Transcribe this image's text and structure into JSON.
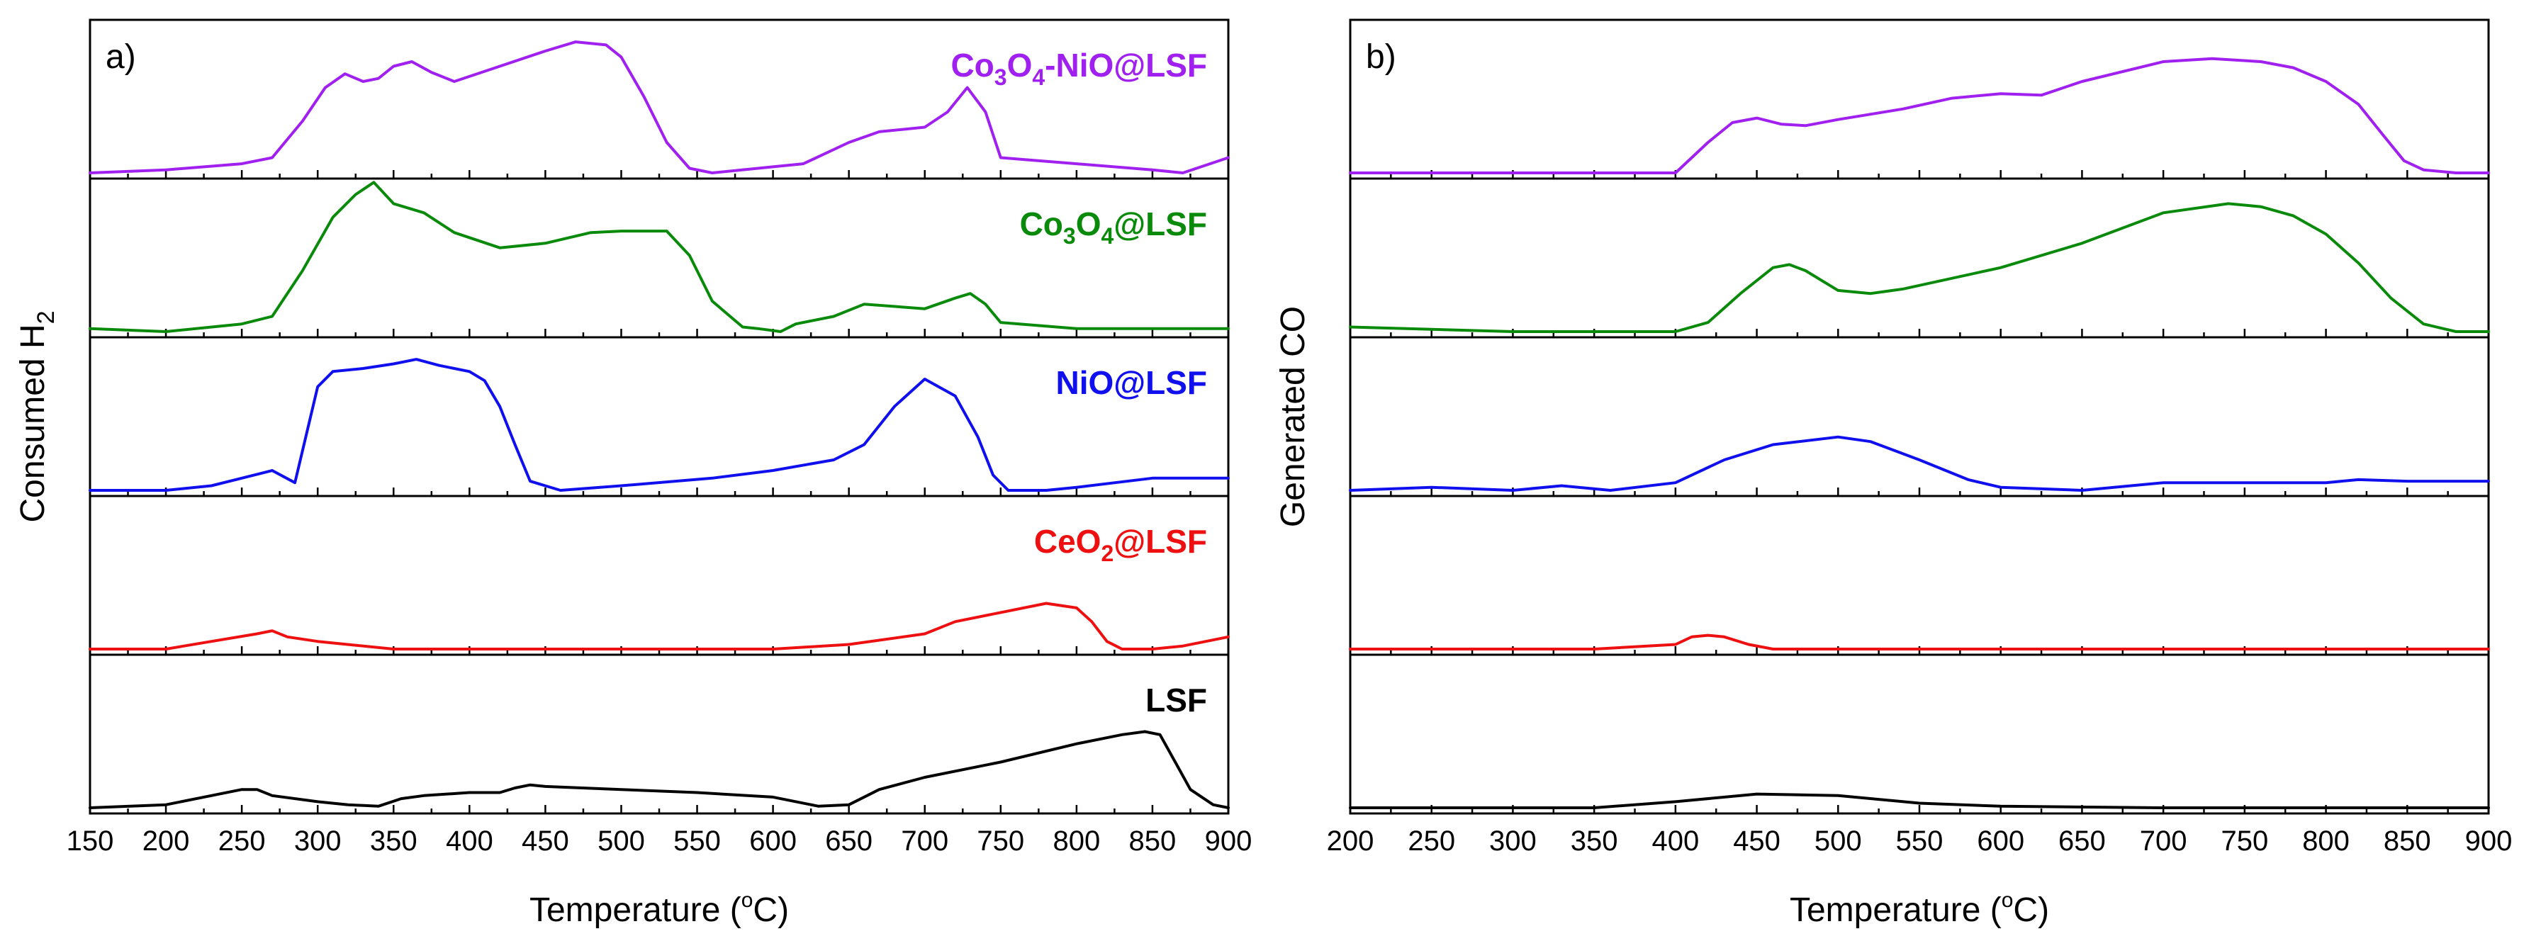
{
  "chart_data": [
    {
      "type": "line",
      "panel_label": "a)",
      "xlabel": "Temperature (",
      "xlabel_sup": "o",
      "xlabel_end": "C)",
      "ylabel": "Consumed H",
      "ylabel_sub": "2",
      "xlim": [
        150,
        900
      ],
      "xticks": [
        "150",
        "200",
        "250",
        "300",
        "350",
        "400",
        "450",
        "500",
        "550",
        "600",
        "650",
        "700",
        "750",
        "800",
        "850",
        "900"
      ],
      "series": [
        {
          "name": "Co3O4-NiO@LSF",
          "label_parts": [
            [
              "Co",
              ""
            ],
            [
              "3",
              "sub"
            ],
            [
              "O",
              ""
            ],
            [
              "4",
              "sub"
            ],
            [
              "-NiO@LSF",
              ""
            ]
          ],
          "color": "#a020f0",
          "x": [
            150,
            200,
            250,
            270,
            290,
            305,
            318,
            330,
            340,
            350,
            362,
            375,
            390,
            420,
            450,
            470,
            490,
            500,
            515,
            530,
            545,
            560,
            600,
            620,
            650,
            670,
            700,
            715,
            728,
            740,
            750,
            800,
            850,
            870,
            900
          ],
          "y": [
            0,
            0.02,
            0.06,
            0.1,
            0.34,
            0.56,
            0.65,
            0.6,
            0.62,
            0.7,
            0.73,
            0.66,
            0.6,
            0.7,
            0.8,
            0.86,
            0.84,
            0.76,
            0.5,
            0.2,
            0.03,
            0,
            0.04,
            0.06,
            0.2,
            0.27,
            0.3,
            0.4,
            0.56,
            0.4,
            0.1,
            0.06,
            0.02,
            0,
            0.1
          ]
        },
        {
          "name": "Co3O4@LSF",
          "label_parts": [
            [
              "Co",
              ""
            ],
            [
              "3",
              "sub"
            ],
            [
              "O",
              ""
            ],
            [
              "4",
              "sub"
            ],
            [
              "@LSF",
              ""
            ]
          ],
          "color": "#0a8a0a",
          "x": [
            150,
            200,
            250,
            270,
            290,
            310,
            325,
            337,
            350,
            370,
            390,
            420,
            450,
            480,
            500,
            530,
            545,
            560,
            580,
            590,
            605,
            615,
            640,
            660,
            700,
            720,
            730,
            740,
            750,
            800,
            850,
            900
          ],
          "y": [
            0.02,
            0,
            0.05,
            0.1,
            0.4,
            0.75,
            0.9,
            0.98,
            0.84,
            0.78,
            0.65,
            0.55,
            0.58,
            0.65,
            0.66,
            0.66,
            0.5,
            0.2,
            0.03,
            0.02,
            0,
            0.05,
            0.1,
            0.18,
            0.15,
            0.22,
            0.25,
            0.18,
            0.06,
            0.02,
            0.02,
            0.02
          ]
        },
        {
          "name": "NiO@LSF",
          "label_parts": [
            [
              "NiO@LSF",
              ""
            ]
          ],
          "color": "#1010ee",
          "x": [
            150,
            200,
            230,
            250,
            270,
            285,
            300,
            310,
            330,
            350,
            365,
            380,
            400,
            410,
            420,
            430,
            440,
            460,
            500,
            560,
            600,
            640,
            660,
            680,
            700,
            720,
            735,
            745,
            755,
            780,
            800,
            850,
            900
          ],
          "y": [
            0,
            0,
            0.03,
            0.08,
            0.13,
            0.05,
            0.68,
            0.78,
            0.8,
            0.83,
            0.86,
            0.82,
            0.78,
            0.72,
            0.55,
            0.3,
            0.06,
            0,
            0.03,
            0.08,
            0.13,
            0.2,
            0.3,
            0.55,
            0.73,
            0.62,
            0.35,
            0.1,
            0,
            0,
            0.02,
            0.08,
            0.08
          ]
        },
        {
          "name": "CeO2@LSF",
          "label_parts": [
            [
              "CeO",
              ""
            ],
            [
              "2",
              "sub"
            ],
            [
              "@LSF",
              ""
            ]
          ],
          "color": "#ee1010",
          "x": [
            150,
            200,
            230,
            260,
            270,
            280,
            300,
            350,
            450,
            600,
            650,
            700,
            720,
            750,
            780,
            800,
            810,
            820,
            830,
            850,
            870,
            900
          ],
          "y": [
            0,
            0,
            0.05,
            0.1,
            0.12,
            0.08,
            0.05,
            0,
            0,
            0,
            0.03,
            0.1,
            0.18,
            0.24,
            0.3,
            0.27,
            0.18,
            0.05,
            0,
            0,
            0.02,
            0.08
          ]
        },
        {
          "name": "LSF",
          "label_parts": [
            [
              "LSF",
              ""
            ]
          ],
          "color": "#000000",
          "x": [
            150,
            200,
            230,
            250,
            260,
            270,
            300,
            320,
            340,
            355,
            370,
            400,
            420,
            430,
            440,
            450,
            500,
            550,
            600,
            630,
            650,
            670,
            700,
            750,
            800,
            830,
            845,
            855,
            865,
            875,
            890,
            900
          ],
          "y": [
            0,
            0.02,
            0.08,
            0.12,
            0.12,
            0.08,
            0.04,
            0.02,
            0.01,
            0.06,
            0.08,
            0.1,
            0.1,
            0.13,
            0.15,
            0.14,
            0.12,
            0.1,
            0.07,
            0.01,
            0.02,
            0.12,
            0.2,
            0.3,
            0.42,
            0.48,
            0.5,
            0.48,
            0.3,
            0.12,
            0.02,
            0
          ]
        }
      ]
    },
    {
      "type": "line",
      "panel_label": "b)",
      "xlabel": "Temperature (",
      "xlabel_sup": "o",
      "xlabel_end": "C)",
      "ylabel": "Generated CO",
      "ylabel_sub": "",
      "xlim": [
        200,
        900
      ],
      "xticks": [
        "200",
        "250",
        "300",
        "350",
        "400",
        "450",
        "500",
        "550",
        "600",
        "650",
        "700",
        "750",
        "800",
        "850",
        "900"
      ],
      "series": [
        {
          "name": "Co3O4-NiO@LSF",
          "color": "#a020f0",
          "x": [
            200,
            300,
            400,
            420,
            435,
            450,
            465,
            480,
            500,
            540,
            570,
            600,
            625,
            650,
            700,
            730,
            760,
            780,
            800,
            820,
            835,
            848,
            860,
            880,
            900
          ],
          "y": [
            0,
            0,
            0,
            0.2,
            0.33,
            0.36,
            0.32,
            0.31,
            0.35,
            0.42,
            0.49,
            0.52,
            0.51,
            0.6,
            0.73,
            0.75,
            0.73,
            0.69,
            0.6,
            0.45,
            0.25,
            0.08,
            0.02,
            0,
            0
          ]
        },
        {
          "name": "Co3O4@LSF",
          "color": "#0a8a0a",
          "x": [
            200,
            300,
            400,
            420,
            440,
            460,
            470,
            480,
            500,
            520,
            540,
            600,
            650,
            700,
            740,
            760,
            780,
            800,
            820,
            840,
            860,
            880,
            900
          ],
          "y": [
            0.03,
            0,
            0,
            0.06,
            0.25,
            0.42,
            0.44,
            0.4,
            0.27,
            0.25,
            0.28,
            0.42,
            0.58,
            0.78,
            0.84,
            0.82,
            0.76,
            0.64,
            0.45,
            0.22,
            0.05,
            0,
            0
          ]
        },
        {
          "name": "NiO@LSF",
          "color": "#1010ee",
          "x": [
            200,
            250,
            300,
            330,
            360,
            400,
            430,
            460,
            500,
            520,
            550,
            580,
            600,
            650,
            700,
            750,
            800,
            820,
            850,
            900
          ],
          "y": [
            0,
            0.02,
            0,
            0.03,
            0,
            0.05,
            0.2,
            0.3,
            0.35,
            0.32,
            0.2,
            0.07,
            0.02,
            0,
            0.05,
            0.05,
            0.05,
            0.07,
            0.06,
            0.06
          ]
        },
        {
          "name": "CeO2@LSF",
          "color": "#ee1010",
          "x": [
            200,
            350,
            400,
            410,
            420,
            430,
            445,
            460,
            900
          ],
          "y": [
            0,
            0,
            0.03,
            0.08,
            0.09,
            0.08,
            0.03,
            0,
            0
          ]
        },
        {
          "name": "LSF",
          "color": "#000000",
          "x": [
            200,
            350,
            400,
            450,
            500,
            550,
            600,
            700,
            800,
            900
          ],
          "y": [
            0,
            0,
            0.04,
            0.09,
            0.08,
            0.03,
            0.01,
            0,
            0,
            0
          ]
        }
      ]
    }
  ]
}
